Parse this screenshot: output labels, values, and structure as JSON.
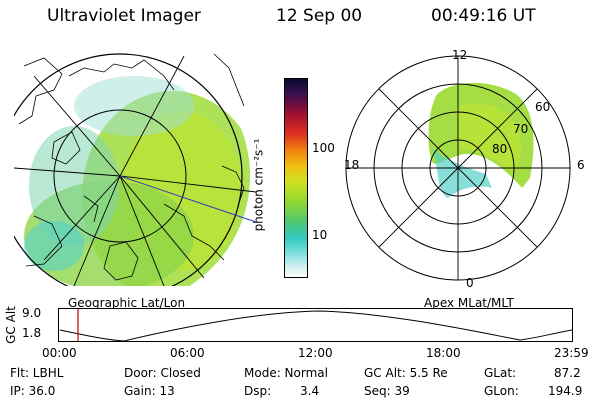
{
  "header": {
    "instrument": "Ultraviolet Imager",
    "date": "12 Sep 00",
    "time": "00:49:16 UT"
  },
  "colorbar": {
    "label": "photon cm⁻²s⁻¹",
    "ticks": [
      "100",
      "10"
    ]
  },
  "panels": {
    "left_caption": "Geographic Lat/Lon",
    "right_caption": "Apex MLat/MLT"
  },
  "polar": {
    "mlt_labels": {
      "top": "12",
      "left": "18",
      "right": "6",
      "bottom": "0"
    },
    "lat_labels": [
      "60",
      "70",
      "80"
    ]
  },
  "altitude_plot": {
    "ylabel": "GC Alt",
    "yticks": [
      "9.0",
      "1.8"
    ],
    "xticks": [
      "00:00",
      "06:00",
      "12:00",
      "18:00",
      "23:59"
    ],
    "marker_color": "#c00000"
  },
  "info": {
    "filter": "Flt: LBHL",
    "ip": "IP: 36.0",
    "door": "Door: Closed",
    "gain": "Gain: 13",
    "mode": "Mode: Normal",
    "dsp_label": "Dsp:",
    "dsp_value": "3.4",
    "gc_alt": "GC Alt: 5.5 Re",
    "seq": "Seq: 39",
    "glat": "GLat:",
    "glat_value": "87.2",
    "glon": "GLon:",
    "glon_value": "194.9"
  }
}
